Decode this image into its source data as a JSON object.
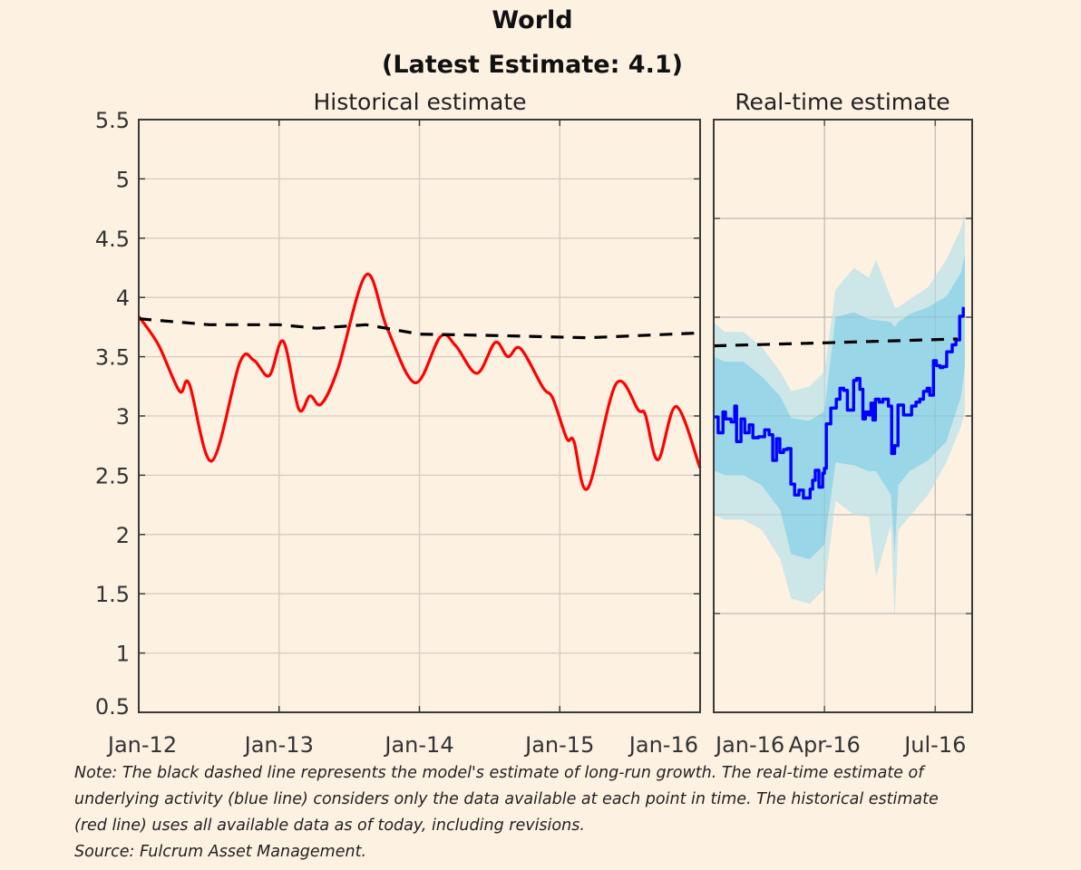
{
  "chart_data": [
    {
      "panel": "historical",
      "type": "line",
      "title": "World",
      "subtitle": "(Latest Estimate: 4.1)",
      "panel_title": "Historical estimate",
      "xlabel": "",
      "ylabel": "",
      "ylim": [
        0.5,
        5.5
      ],
      "yticks": [
        0.5,
        1,
        1.5,
        2,
        2.5,
        3,
        3.5,
        4,
        4.5,
        5,
        5.5
      ],
      "ytick_labels": [
        "0.5",
        "1",
        "1.5",
        "2",
        "2.5",
        "3",
        "3.5",
        "4",
        "4.5",
        "5",
        "5.5"
      ],
      "xlim": [
        2012.0,
        2016.0
      ],
      "xticks": [
        2012.0,
        2013.0,
        2014.0,
        2015.0,
        2016.0
      ],
      "xtick_labels": [
        "Jan-12",
        "Jan-13",
        "Jan-14",
        "Jan-15",
        "Jan-16"
      ],
      "grid": true,
      "series": [
        {
          "name": "Historical estimate (red line)",
          "color": "#FF0000",
          "style": "solid",
          "x": [
            2012.0,
            2012.14,
            2012.29,
            2012.36,
            2012.52,
            2012.72,
            2012.82,
            2012.93,
            2013.03,
            2013.14,
            2013.22,
            2013.3,
            2013.42,
            2013.62,
            2013.77,
            2013.97,
            2014.15,
            2014.26,
            2014.41,
            2014.54,
            2014.63,
            2014.72,
            2014.88,
            2014.95,
            2015.05,
            2015.1,
            2015.2,
            2015.4,
            2015.56,
            2015.61,
            2015.7,
            2015.83,
            2016.0
          ],
          "y": [
            3.84,
            3.6,
            3.21,
            3.27,
            2.62,
            3.45,
            3.47,
            3.34,
            3.63,
            3.06,
            3.17,
            3.1,
            3.4,
            4.19,
            3.74,
            3.28,
            3.67,
            3.59,
            3.36,
            3.62,
            3.5,
            3.57,
            3.24,
            3.15,
            2.81,
            2.79,
            2.39,
            3.27,
            3.05,
            3.01,
            2.63,
            3.08,
            2.56
          ]
        },
        {
          "name": "Long-run growth (black dashed line)",
          "color": "#000000",
          "style": "dashed",
          "x": [
            2012.0,
            2012.5,
            2013.0,
            2013.27,
            2013.62,
            2014.0,
            2014.5,
            2015.2,
            2016.0
          ],
          "y": [
            3.82,
            3.77,
            3.77,
            3.74,
            3.77,
            3.69,
            3.68,
            3.66,
            3.7
          ]
        }
      ]
    },
    {
      "panel": "real-time",
      "type": "area",
      "panel_title": "Real-time estimate",
      "xlabel": "",
      "ylabel": "",
      "ylim": [
        0,
        6
      ],
      "yticks": [
        1,
        2,
        3,
        4,
        5
      ],
      "xlim": [
        0,
        7.0
      ],
      "xticks": [
        0,
        3.0,
        6.0
      ],
      "xtick_labels": [
        "Jan-16",
        "Apr-16",
        "Jul-16"
      ],
      "x_unit": "months since Jan-16",
      "grid": true,
      "series": [
        {
          "name": "Real-time estimate (blue line)",
          "color": "#0000FF",
          "style": "solid",
          "x": [
            0.05,
            0.12,
            0.25,
            0.32,
            0.47,
            0.57,
            0.62,
            0.74,
            0.84,
            0.96,
            1.06,
            1.21,
            1.38,
            1.5,
            1.6,
            1.7,
            1.79,
            1.89,
            1.99,
            2.09,
            2.19,
            2.31,
            2.43,
            2.51,
            2.61,
            2.68,
            2.75,
            2.85,
            2.95,
            3.0,
            3.05,
            3.17,
            3.27,
            3.32,
            3.42,
            3.52,
            3.62,
            3.67,
            3.79,
            3.87,
            3.96,
            4.04,
            4.11,
            4.19,
            4.26,
            4.31,
            4.38,
            4.48,
            4.58,
            4.65,
            4.73,
            4.82,
            4.9,
            4.99,
            5.14,
            5.24,
            5.36,
            5.48,
            5.58,
            5.68,
            5.78,
            5.85,
            5.95,
            6.03,
            6.13,
            6.21,
            6.31,
            6.46,
            6.56,
            6.66,
            6.76
          ],
          "y": [
            2.99,
            2.83,
            3.04,
            2.97,
            2.94,
            3.1,
            2.74,
            2.97,
            2.83,
            2.91,
            2.78,
            2.79,
            2.86,
            2.81,
            2.55,
            2.77,
            2.63,
            2.66,
            2.67,
            2.31,
            2.2,
            2.25,
            2.17,
            2.17,
            2.26,
            2.35,
            2.45,
            2.28,
            2.42,
            2.47,
            2.92,
            3.08,
            3.08,
            3.17,
            3.28,
            3.26,
            3.06,
            3.06,
            3.36,
            3.38,
            3.27,
            2.97,
            3.04,
            3.01,
            3.13,
            2.96,
            3.17,
            3.14,
            3.17,
            3.17,
            3.1,
            2.62,
            2.7,
            3.11,
            3.01,
            3.01,
            3.1,
            3.14,
            3.17,
            3.25,
            3.28,
            3.21,
            3.56,
            3.51,
            3.49,
            3.5,
            3.65,
            3.72,
            3.77,
            4.01,
            4.09
          ]
        },
        {
          "name": "Long-run growth (black dashed line)",
          "color": "#000000",
          "style": "dashed",
          "x": [
            0.0,
            3.0,
            6.6
          ],
          "y": [
            3.71,
            3.74,
            3.78
          ]
        },
        {
          "name": "Outer uncertainty band",
          "color": "#CDE6E8",
          "x": [
            0.0,
            0.3,
            0.8,
            1.3,
            1.8,
            2.1,
            2.6,
            3.0,
            3.3,
            3.8,
            4.2,
            4.4,
            4.8,
            4.9,
            5.0,
            5.3,
            5.8,
            6.3,
            6.7,
            6.8
          ],
          "upper": [
            3.95,
            3.85,
            3.85,
            3.7,
            3.45,
            3.25,
            3.3,
            3.45,
            4.28,
            4.5,
            4.4,
            4.58,
            4.2,
            4.1,
            4.1,
            4.18,
            4.3,
            4.58,
            4.9,
            5.07
          ],
          "lower": [
            2.0,
            1.95,
            1.95,
            1.85,
            1.55,
            1.15,
            1.1,
            1.25,
            2.14,
            2.0,
            1.98,
            1.37,
            1.9,
            0.94,
            1.85,
            1.98,
            2.2,
            2.53,
            2.9,
            3.05
          ]
        },
        {
          "name": "Inner uncertainty band",
          "color": "#98D6E8",
          "x": [
            0.0,
            0.3,
            0.8,
            1.3,
            1.8,
            2.1,
            2.6,
            3.0,
            3.3,
            3.8,
            4.2,
            4.4,
            4.8,
            4.9,
            5.0,
            5.3,
            5.8,
            6.3,
            6.7,
            6.8
          ],
          "upper": [
            3.6,
            3.55,
            3.55,
            3.4,
            3.2,
            2.98,
            2.95,
            3.05,
            4.0,
            4.05,
            3.98,
            3.97,
            3.95,
            3.9,
            3.95,
            4.03,
            4.1,
            4.21,
            4.45,
            4.64
          ],
          "lower": [
            2.45,
            2.4,
            2.4,
            2.3,
            2.05,
            1.6,
            1.55,
            1.7,
            2.53,
            2.5,
            2.44,
            2.44,
            2.2,
            1.61,
            2.3,
            2.44,
            2.55,
            2.74,
            3.2,
            3.51
          ]
        }
      ]
    }
  ],
  "header": {
    "title": "World",
    "subtitle": "(Latest Estimate: 4.1)",
    "panel_left_title": "Historical estimate",
    "panel_right_title": "Real-time estimate"
  },
  "footer": {
    "note_lines": [
      "Note: The black dashed line represents the model's estimate of long-run growth. The real-time estimate of",
      "underlying activity (blue line) considers only the data available at each point in time. The historical estimate",
      "(red line) uses all available data as of today, including revisions."
    ],
    "source": "Source: Fulcrum Asset Management."
  },
  "colors": {
    "background": "#FDF1E2",
    "historical_line": "#FF0000",
    "realtime_line": "#0000FF",
    "long_run_line": "#000000",
    "outer_band": "#CDE6E8",
    "inner_band": "#98D6E8",
    "grid": "#D4CCC0",
    "frame": "#3A3A3A"
  }
}
